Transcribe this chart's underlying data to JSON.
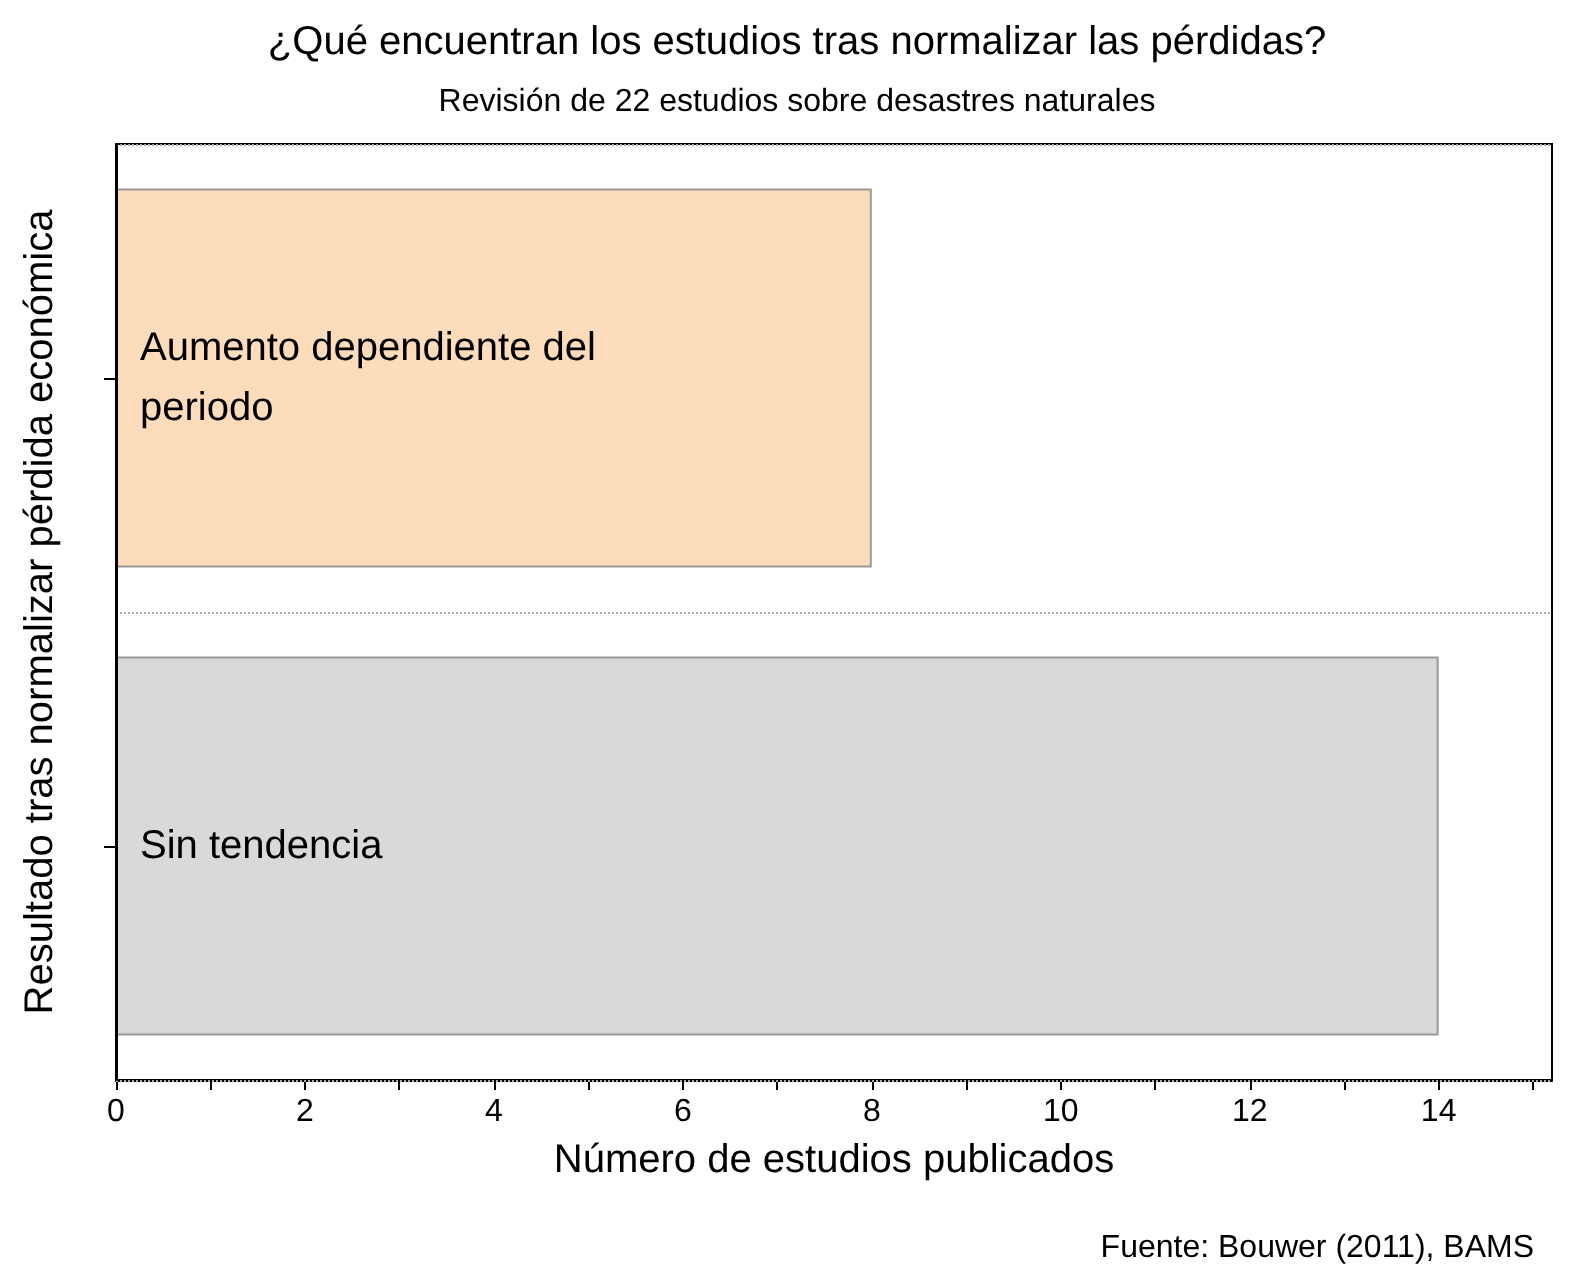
{
  "chart_data": {
    "type": "bar",
    "orientation": "horizontal",
    "title": "¿Qué encuentran los estudios tras normalizar las pérdidas?",
    "subtitle": "Revisión de 22 estudios sobre desastres naturales",
    "xlabel": "Número de estudios publicados",
    "ylabel": "Resultado tras normalizar pérdida económica",
    "categories": [
      "Aumento dependiente del periodo",
      "Sin tendencia"
    ],
    "values": [
      8,
      14
    ],
    "colors": [
      "#fddcbb",
      "#d9d9d9"
    ],
    "xlim": [
      0,
      15.2
    ],
    "xticks": [
      0,
      {
        "value": 1,
        "label": null
      },
      2,
      {
        "value": 3,
        "label": null
      },
      4,
      {
        "value": 5,
        "label": null
      },
      6,
      {
        "value": 7,
        "label": null
      },
      8,
      {
        "value": 9,
        "label": null
      },
      10,
      {
        "value": 11,
        "label": null
      },
      12,
      {
        "value": 13,
        "label": null
      },
      14,
      {
        "value": 15,
        "label": null
      }
    ],
    "grid": "y",
    "annotations": [
      "Fuente: Bouwer (2011), BAMS"
    ]
  }
}
